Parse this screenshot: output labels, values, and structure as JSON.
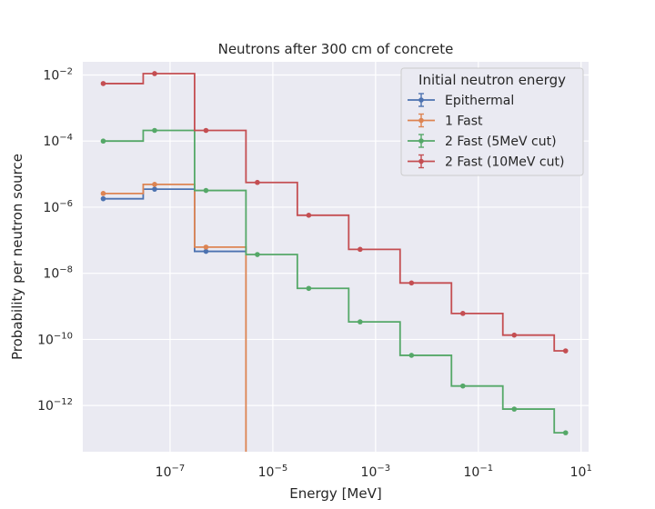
{
  "chart_data": {
    "type": "line",
    "drawstyle": "steps",
    "title": "Neutrons after 300 cm of concrete",
    "xlabel": "Energy [MeV]",
    "ylabel": "Probability per neutron source",
    "xscale": "log",
    "yscale": "log",
    "xlim": [
      2e-09,
      14
    ],
    "ylim": [
      4e-14,
      0.025
    ],
    "grid": true,
    "x_ticks": [
      {
        "value": 1e-07,
        "base": "10",
        "exp": "−7"
      },
      {
        "value": 1e-05,
        "base": "10",
        "exp": "−5"
      },
      {
        "value": 0.001,
        "base": "10",
        "exp": "−3"
      },
      {
        "value": 0.1,
        "base": "10",
        "exp": "−1"
      },
      {
        "value": 10,
        "base": "10",
        "exp": "1"
      }
    ],
    "y_ticks": [
      {
        "value": 0.01,
        "base": "10",
        "exp": "−2"
      },
      {
        "value": 0.0001,
        "base": "10",
        "exp": "−4"
      },
      {
        "value": 1e-06,
        "base": "10",
        "exp": "−6"
      },
      {
        "value": 1e-08,
        "base": "10",
        "exp": "−8"
      },
      {
        "value": 1e-10,
        "base": "10",
        "exp": "−10"
      },
      {
        "value": 1e-12,
        "base": "10",
        "exp": "−12"
      }
    ],
    "bin_edges": [
      5e-09,
      3e-08,
      3e-07,
      3e-06,
      3e-05,
      0.0003,
      0.003,
      0.03,
      0.3,
      3,
      5.5
    ],
    "bin_centers": [
      5e-09,
      5e-08,
      5e-07,
      5e-06,
      5e-05,
      0.0005,
      0.005,
      0.05,
      0.5,
      5
    ],
    "legend": {
      "title": "Initial neutron energy",
      "position": "top-right"
    },
    "series": [
      {
        "name": "Epithermal",
        "color": "#4c72b0",
        "values": [
          1.8e-06,
          3.5e-06,
          4.6e-08,
          null,
          null,
          null,
          null,
          null,
          null,
          null
        ]
      },
      {
        "name": "1 Fast",
        "color": "#dd8452",
        "values": [
          2.6e-06,
          4.9e-06,
          6.2e-08,
          0,
          null,
          null,
          null,
          null,
          null,
          null
        ]
      },
      {
        "name": "2 Fast (5MeV cut)",
        "color": "#55a868",
        "values": [
          0.0001,
          0.00021,
          3.2e-06,
          3.7e-08,
          3.5e-09,
          3.4e-10,
          3.3e-11,
          3.9e-12,
          7.8e-13,
          1.5e-13
        ]
      },
      {
        "name": "2 Fast (10MeV cut)",
        "color": "#c44e52",
        "values": [
          0.0055,
          0.011,
          0.00021,
          5.6e-06,
          5.7e-07,
          5.3e-08,
          5.1e-09,
          6.1e-10,
          1.35e-10,
          4.5e-11
        ]
      }
    ]
  }
}
